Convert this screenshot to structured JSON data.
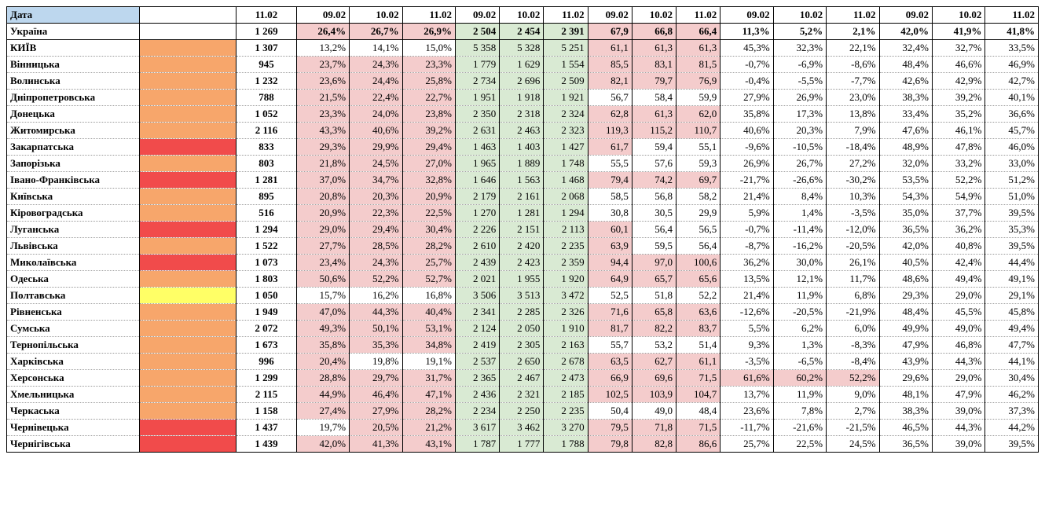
{
  "colors": {
    "header_bg": "#bdd7ee",
    "status_red": "#f14b4b",
    "status_orange": "#f7a66b",
    "status_yellow": "#ffff66",
    "pink_bg": "#f4cccc",
    "green_bg": "#d9ead3",
    "white": "#ffffff",
    "black": "#000000"
  },
  "font": {
    "family": "Times New Roman",
    "size_pt": 10
  },
  "header": {
    "date_label": "Дата",
    "groups": [
      {
        "cols": [
          "11.02"
        ]
      },
      {
        "cols": [
          "09.02",
          "10.02",
          "11.02"
        ]
      },
      {
        "cols": [
          "09.02",
          "10.02",
          "11.02"
        ]
      },
      {
        "cols": [
          "09.02",
          "10.02",
          "11.02"
        ]
      },
      {
        "cols": [
          "09.02",
          "10.02",
          "11.02"
        ]
      },
      {
        "cols": [
          "09.02",
          "10.02",
          "11.02"
        ]
      }
    ]
  },
  "rows": [
    {
      "region": "Україна",
      "status": null,
      "is_total": true,
      "c0": "1 269",
      "g1": [
        "26,4%",
        "26,7%",
        "26,9%"
      ],
      "g1_hl": [
        true,
        true,
        true
      ],
      "g2": [
        "2 504",
        "2 454",
        "2 391"
      ],
      "g3": [
        "67,9",
        "66,8",
        "66,4"
      ],
      "g3_hl": [
        true,
        true,
        true
      ],
      "g4": [
        "11,3%",
        "5,2%",
        "2,1%"
      ],
      "g4_hl": [
        false,
        false,
        false
      ],
      "g5": [
        "42,0%",
        "41,9%",
        "41,8%"
      ],
      "g5_hl": [
        false,
        false,
        false
      ]
    },
    {
      "region": "КИЇВ",
      "status": "orange",
      "c0": "1 307",
      "g1": [
        "13,2%",
        "14,1%",
        "15,0%"
      ],
      "g1_hl": [
        false,
        false,
        false
      ],
      "g2": [
        "5 358",
        "5 328",
        "5 251"
      ],
      "g3": [
        "61,1",
        "61,3",
        "61,3"
      ],
      "g3_hl": [
        true,
        true,
        true
      ],
      "g4": [
        "45,3%",
        "32,3%",
        "22,1%"
      ],
      "g4_hl": [
        false,
        false,
        false
      ],
      "g5": [
        "32,4%",
        "32,7%",
        "33,5%"
      ],
      "g5_hl": [
        false,
        false,
        false
      ]
    },
    {
      "region": "Вінницька",
      "status": "orange",
      "c0": "945",
      "g1": [
        "23,7%",
        "24,3%",
        "23,3%"
      ],
      "g1_hl": [
        true,
        true,
        true
      ],
      "g2": [
        "1 779",
        "1 629",
        "1 554"
      ],
      "g3": [
        "85,5",
        "83,1",
        "81,5"
      ],
      "g3_hl": [
        true,
        true,
        true
      ],
      "g4": [
        "-0,7%",
        "-6,9%",
        "-8,6%"
      ],
      "g4_hl": [
        false,
        false,
        false
      ],
      "g5": [
        "48,4%",
        "46,6%",
        "46,9%"
      ],
      "g5_hl": [
        false,
        false,
        false
      ]
    },
    {
      "region": "Волинська",
      "status": "orange",
      "c0": "1 232",
      "g1": [
        "23,6%",
        "24,4%",
        "25,8%"
      ],
      "g1_hl": [
        true,
        true,
        true
      ],
      "g2": [
        "2 734",
        "2 696",
        "2 509"
      ],
      "g3": [
        "82,1",
        "79,7",
        "76,9"
      ],
      "g3_hl": [
        true,
        true,
        true
      ],
      "g4": [
        "-0,4%",
        "-5,5%",
        "-7,7%"
      ],
      "g4_hl": [
        false,
        false,
        false
      ],
      "g5": [
        "42,6%",
        "42,9%",
        "42,7%"
      ],
      "g5_hl": [
        false,
        false,
        false
      ]
    },
    {
      "region": "Дніпропетровська",
      "status": "orange",
      "c0": "788",
      "g1": [
        "21,5%",
        "22,4%",
        "22,7%"
      ],
      "g1_hl": [
        true,
        true,
        true
      ],
      "g2": [
        "1 951",
        "1 918",
        "1 921"
      ],
      "g3": [
        "56,7",
        "58,4",
        "59,9"
      ],
      "g3_hl": [
        false,
        false,
        false
      ],
      "g4": [
        "27,9%",
        "26,9%",
        "23,0%"
      ],
      "g4_hl": [
        false,
        false,
        false
      ],
      "g5": [
        "38,3%",
        "39,2%",
        "40,1%"
      ],
      "g5_hl": [
        false,
        false,
        false
      ]
    },
    {
      "region": "Донецька",
      "status": "orange",
      "c0": "1 052",
      "g1": [
        "23,3%",
        "24,0%",
        "23,8%"
      ],
      "g1_hl": [
        true,
        true,
        true
      ],
      "g2": [
        "2 350",
        "2 318",
        "2 324"
      ],
      "g3": [
        "62,8",
        "61,3",
        "62,0"
      ],
      "g3_hl": [
        true,
        true,
        true
      ],
      "g4": [
        "35,8%",
        "17,3%",
        "13,8%"
      ],
      "g4_hl": [
        false,
        false,
        false
      ],
      "g5": [
        "33,4%",
        "35,2%",
        "36,6%"
      ],
      "g5_hl": [
        false,
        false,
        false
      ]
    },
    {
      "region": "Житомирська",
      "status": "orange",
      "c0": "2 116",
      "g1": [
        "43,3%",
        "40,6%",
        "39,2%"
      ],
      "g1_hl": [
        true,
        true,
        true
      ],
      "g2": [
        "2 631",
        "2 463",
        "2 323"
      ],
      "g3": [
        "119,3",
        "115,2",
        "110,7"
      ],
      "g3_hl": [
        true,
        true,
        true
      ],
      "g4": [
        "40,6%",
        "20,3%",
        "7,9%"
      ],
      "g4_hl": [
        false,
        false,
        false
      ],
      "g5": [
        "47,6%",
        "46,1%",
        "45,7%"
      ],
      "g5_hl": [
        false,
        false,
        false
      ]
    },
    {
      "region": "Закарпатська",
      "status": "red",
      "c0": "833",
      "g1": [
        "29,3%",
        "29,9%",
        "29,4%"
      ],
      "g1_hl": [
        true,
        true,
        true
      ],
      "g2": [
        "1 463",
        "1 403",
        "1 427"
      ],
      "g3": [
        "61,7",
        "59,4",
        "55,1"
      ],
      "g3_hl": [
        true,
        false,
        false
      ],
      "g4": [
        "-9,6%",
        "-10,5%",
        "-18,4%"
      ],
      "g4_hl": [
        false,
        false,
        false
      ],
      "g5": [
        "48,9%",
        "47,8%",
        "46,0%"
      ],
      "g5_hl": [
        false,
        false,
        false
      ]
    },
    {
      "region": "Запорізька",
      "status": "orange",
      "c0": "803",
      "g1": [
        "21,8%",
        "24,5%",
        "27,0%"
      ],
      "g1_hl": [
        true,
        true,
        true
      ],
      "g2": [
        "1 965",
        "1 889",
        "1 748"
      ],
      "g3": [
        "55,5",
        "57,6",
        "59,3"
      ],
      "g3_hl": [
        false,
        false,
        false
      ],
      "g4": [
        "26,9%",
        "26,7%",
        "27,2%"
      ],
      "g4_hl": [
        false,
        false,
        false
      ],
      "g5": [
        "32,0%",
        "33,2%",
        "33,0%"
      ],
      "g5_hl": [
        false,
        false,
        false
      ]
    },
    {
      "region": "Івано-Франківська",
      "status": "red",
      "c0": "1 281",
      "g1": [
        "37,0%",
        "34,7%",
        "32,8%"
      ],
      "g1_hl": [
        true,
        true,
        true
      ],
      "g2": [
        "1 646",
        "1 563",
        "1 468"
      ],
      "g3": [
        "79,4",
        "74,2",
        "69,7"
      ],
      "g3_hl": [
        true,
        true,
        true
      ],
      "g4": [
        "-21,7%",
        "-26,6%",
        "-30,2%"
      ],
      "g4_hl": [
        false,
        false,
        false
      ],
      "g5": [
        "53,5%",
        "52,2%",
        "51,2%"
      ],
      "g5_hl": [
        false,
        false,
        false
      ]
    },
    {
      "region": "Київська",
      "status": "orange",
      "c0": "895",
      "g1": [
        "20,8%",
        "20,3%",
        "20,9%"
      ],
      "g1_hl": [
        true,
        true,
        true
      ],
      "g2": [
        "2 179",
        "2 161",
        "2 068"
      ],
      "g3": [
        "58,5",
        "56,8",
        "58,2"
      ],
      "g3_hl": [
        false,
        false,
        false
      ],
      "g4": [
        "21,4%",
        "8,4%",
        "10,3%"
      ],
      "g4_hl": [
        false,
        false,
        false
      ],
      "g5": [
        "54,3%",
        "54,9%",
        "51,0%"
      ],
      "g5_hl": [
        false,
        false,
        false
      ]
    },
    {
      "region": "Кіровоградська",
      "status": "orange",
      "c0": "516",
      "g1": [
        "20,9%",
        "22,3%",
        "22,5%"
      ],
      "g1_hl": [
        true,
        true,
        true
      ],
      "g2": [
        "1 270",
        "1 281",
        "1 294"
      ],
      "g3": [
        "30,8",
        "30,5",
        "29,9"
      ],
      "g3_hl": [
        false,
        false,
        false
      ],
      "g4": [
        "5,9%",
        "1,4%",
        "-3,5%"
      ],
      "g4_hl": [
        false,
        false,
        false
      ],
      "g5": [
        "35,0%",
        "37,7%",
        "39,5%"
      ],
      "g5_hl": [
        false,
        false,
        false
      ]
    },
    {
      "region": "Луганська",
      "status": "red",
      "c0": "1 294",
      "g1": [
        "29,0%",
        "29,4%",
        "30,4%"
      ],
      "g1_hl": [
        true,
        true,
        true
      ],
      "g2": [
        "2 226",
        "2 151",
        "2 113"
      ],
      "g3": [
        "60,1",
        "56,4",
        "56,5"
      ],
      "g3_hl": [
        true,
        false,
        false
      ],
      "g4": [
        "-0,7%",
        "-11,4%",
        "-12,0%"
      ],
      "g4_hl": [
        false,
        false,
        false
      ],
      "g5": [
        "36,5%",
        "36,2%",
        "35,3%"
      ],
      "g5_hl": [
        false,
        false,
        false
      ]
    },
    {
      "region": "Львівська",
      "status": "orange",
      "c0": "1 522",
      "g1": [
        "27,7%",
        "28,5%",
        "28,2%"
      ],
      "g1_hl": [
        true,
        true,
        true
      ],
      "g2": [
        "2 610",
        "2 420",
        "2 235"
      ],
      "g3": [
        "63,9",
        "59,5",
        "56,4"
      ],
      "g3_hl": [
        true,
        false,
        false
      ],
      "g4": [
        "-8,7%",
        "-16,2%",
        "-20,5%"
      ],
      "g4_hl": [
        false,
        false,
        false
      ],
      "g5": [
        "42,0%",
        "40,8%",
        "39,5%"
      ],
      "g5_hl": [
        false,
        false,
        false
      ]
    },
    {
      "region": "Миколаївська",
      "status": "red",
      "c0": "1 073",
      "g1": [
        "23,4%",
        "24,3%",
        "25,7%"
      ],
      "g1_hl": [
        true,
        true,
        true
      ],
      "g2": [
        "2 439",
        "2 423",
        "2 359"
      ],
      "g3": [
        "94,4",
        "97,0",
        "100,6"
      ],
      "g3_hl": [
        true,
        true,
        true
      ],
      "g4": [
        "36,2%",
        "30,0%",
        "26,1%"
      ],
      "g4_hl": [
        false,
        false,
        false
      ],
      "g5": [
        "40,5%",
        "42,4%",
        "44,4%"
      ],
      "g5_hl": [
        false,
        false,
        false
      ]
    },
    {
      "region": "Одеська",
      "status": "orange",
      "c0": "1 803",
      "g1": [
        "50,6%",
        "52,2%",
        "52,7%"
      ],
      "g1_hl": [
        true,
        true,
        true
      ],
      "g2": [
        "2 021",
        "1 955",
        "1 920"
      ],
      "g3": [
        "64,9",
        "65,7",
        "65,6"
      ],
      "g3_hl": [
        true,
        true,
        true
      ],
      "g4": [
        "13,5%",
        "12,1%",
        "11,7%"
      ],
      "g4_hl": [
        false,
        false,
        false
      ],
      "g5": [
        "48,6%",
        "49,4%",
        "49,1%"
      ],
      "g5_hl": [
        false,
        false,
        false
      ]
    },
    {
      "region": "Полтавська",
      "status": "yellow",
      "c0": "1 050",
      "g1": [
        "15,7%",
        "16,2%",
        "16,8%"
      ],
      "g1_hl": [
        false,
        false,
        false
      ],
      "g2": [
        "3 506",
        "3 513",
        "3 472"
      ],
      "g3": [
        "52,5",
        "51,8",
        "52,2"
      ],
      "g3_hl": [
        false,
        false,
        false
      ],
      "g4": [
        "21,4%",
        "11,9%",
        "6,8%"
      ],
      "g4_hl": [
        false,
        false,
        false
      ],
      "g5": [
        "29,3%",
        "29,0%",
        "29,1%"
      ],
      "g5_hl": [
        false,
        false,
        false
      ]
    },
    {
      "region": "Рівненська",
      "status": "orange",
      "c0": "1 949",
      "g1": [
        "47,0%",
        "44,3%",
        "40,4%"
      ],
      "g1_hl": [
        true,
        true,
        true
      ],
      "g2": [
        "2 341",
        "2 285",
        "2 326"
      ],
      "g3": [
        "71,6",
        "65,8",
        "63,6"
      ],
      "g3_hl": [
        true,
        true,
        true
      ],
      "g4": [
        "-12,6%",
        "-20,5%",
        "-21,9%"
      ],
      "g4_hl": [
        false,
        false,
        false
      ],
      "g5": [
        "48,4%",
        "45,5%",
        "45,8%"
      ],
      "g5_hl": [
        false,
        false,
        false
      ]
    },
    {
      "region": "Сумська",
      "status": "orange",
      "c0": "2 072",
      "g1": [
        "49,3%",
        "50,1%",
        "53,1%"
      ],
      "g1_hl": [
        true,
        true,
        true
      ],
      "g2": [
        "2 124",
        "2 050",
        "1 910"
      ],
      "g3": [
        "81,7",
        "82,2",
        "83,7"
      ],
      "g3_hl": [
        true,
        true,
        true
      ],
      "g4": [
        "5,5%",
        "6,2%",
        "6,0%"
      ],
      "g4_hl": [
        false,
        false,
        false
      ],
      "g5": [
        "49,9%",
        "49,0%",
        "49,4%"
      ],
      "g5_hl": [
        false,
        false,
        false
      ]
    },
    {
      "region": "Тернопільська",
      "status": "orange",
      "c0": "1 673",
      "g1": [
        "35,8%",
        "35,3%",
        "34,8%"
      ],
      "g1_hl": [
        true,
        true,
        true
      ],
      "g2": [
        "2 419",
        "2 305",
        "2 163"
      ],
      "g3": [
        "55,7",
        "53,2",
        "51,4"
      ],
      "g3_hl": [
        false,
        false,
        false
      ],
      "g4": [
        "9,3%",
        "1,3%",
        "-8,3%"
      ],
      "g4_hl": [
        false,
        false,
        false
      ],
      "g5": [
        "47,9%",
        "46,8%",
        "47,7%"
      ],
      "g5_hl": [
        false,
        false,
        false
      ]
    },
    {
      "region": "Харківська",
      "status": "orange",
      "c0": "996",
      "g1": [
        "20,4%",
        "19,8%",
        "19,1%"
      ],
      "g1_hl": [
        true,
        false,
        false
      ],
      "g2": [
        "2 537",
        "2 650",
        "2 678"
      ],
      "g3": [
        "63,5",
        "62,7",
        "61,1"
      ],
      "g3_hl": [
        true,
        true,
        true
      ],
      "g4": [
        "-3,5%",
        "-6,5%",
        "-8,4%"
      ],
      "g4_hl": [
        false,
        false,
        false
      ],
      "g5": [
        "43,9%",
        "44,3%",
        "44,1%"
      ],
      "g5_hl": [
        false,
        false,
        false
      ]
    },
    {
      "region": "Херсонська",
      "status": "orange",
      "c0": "1 299",
      "g1": [
        "28,8%",
        "29,7%",
        "31,7%"
      ],
      "g1_hl": [
        true,
        true,
        true
      ],
      "g2": [
        "2 365",
        "2 467",
        "2 473"
      ],
      "g3": [
        "66,9",
        "69,6",
        "71,5"
      ],
      "g3_hl": [
        true,
        true,
        true
      ],
      "g4": [
        "61,6%",
        "60,2%",
        "52,2%"
      ],
      "g4_hl": [
        true,
        true,
        true
      ],
      "g5": [
        "29,6%",
        "29,0%",
        "30,4%"
      ],
      "g5_hl": [
        false,
        false,
        false
      ]
    },
    {
      "region": "Хмельницька",
      "status": "orange",
      "c0": "2 115",
      "g1": [
        "44,9%",
        "46,4%",
        "47,1%"
      ],
      "g1_hl": [
        true,
        true,
        true
      ],
      "g2": [
        "2 436",
        "2 321",
        "2 185"
      ],
      "g3": [
        "102,5",
        "103,9",
        "104,7"
      ],
      "g3_hl": [
        true,
        true,
        true
      ],
      "g4": [
        "13,7%",
        "11,9%",
        "9,0%"
      ],
      "g4_hl": [
        false,
        false,
        false
      ],
      "g5": [
        "48,1%",
        "47,9%",
        "46,2%"
      ],
      "g5_hl": [
        false,
        false,
        false
      ]
    },
    {
      "region": "Черкаська",
      "status": "orange",
      "c0": "1 158",
      "g1": [
        "27,4%",
        "27,9%",
        "28,2%"
      ],
      "g1_hl": [
        true,
        true,
        true
      ],
      "g2": [
        "2 234",
        "2 250",
        "2 235"
      ],
      "g3": [
        "50,4",
        "49,0",
        "48,4"
      ],
      "g3_hl": [
        false,
        false,
        false
      ],
      "g4": [
        "23,6%",
        "7,8%",
        "2,7%"
      ],
      "g4_hl": [
        false,
        false,
        false
      ],
      "g5": [
        "38,3%",
        "39,0%",
        "37,3%"
      ],
      "g5_hl": [
        false,
        false,
        false
      ]
    },
    {
      "region": "Чернівецька",
      "status": "red",
      "c0": "1 437",
      "g1": [
        "19,7%",
        "20,5%",
        "21,2%"
      ],
      "g1_hl": [
        false,
        true,
        true
      ],
      "g2": [
        "3 617",
        "3 462",
        "3 270"
      ],
      "g3": [
        "79,5",
        "71,8",
        "71,5"
      ],
      "g3_hl": [
        true,
        true,
        true
      ],
      "g4": [
        "-11,7%",
        "-21,6%",
        "-21,5%"
      ],
      "g4_hl": [
        false,
        false,
        false
      ],
      "g5": [
        "46,5%",
        "44,3%",
        "44,2%"
      ],
      "g5_hl": [
        false,
        false,
        false
      ]
    },
    {
      "region": "Чернігівська",
      "status": "red",
      "c0": "1 439",
      "g1": [
        "42,0%",
        "41,3%",
        "43,1%"
      ],
      "g1_hl": [
        true,
        true,
        true
      ],
      "g2": [
        "1 787",
        "1 777",
        "1 788"
      ],
      "g3": [
        "79,8",
        "82,8",
        "86,6"
      ],
      "g3_hl": [
        true,
        true,
        true
      ],
      "g4": [
        "25,7%",
        "22,5%",
        "24,5%"
      ],
      "g4_hl": [
        false,
        false,
        false
      ],
      "g5": [
        "36,5%",
        "39,0%",
        "39,5%"
      ],
      "g5_hl": [
        false,
        false,
        false
      ]
    }
  ]
}
